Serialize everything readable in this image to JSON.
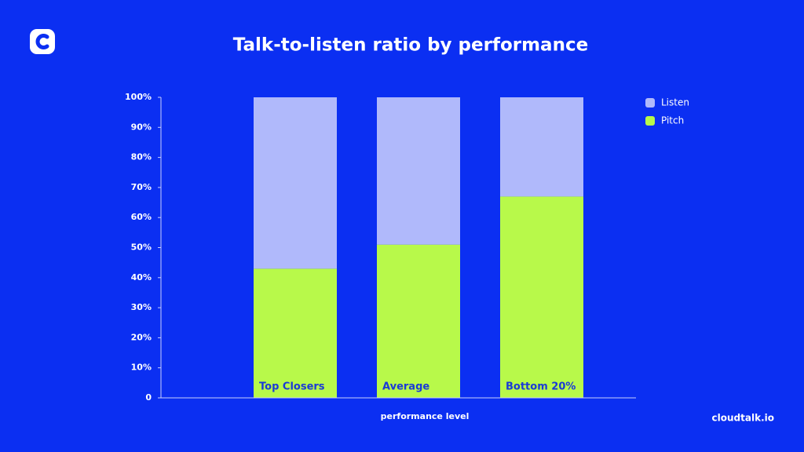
{
  "chart_data": {
    "type": "stacked_bar",
    "title": "Talk-to-listen ratio by performance",
    "x_label": "performance level",
    "brand": "cloudtalk.io",
    "categories": [
      "Top Closers",
      "Average",
      "Bottom 20%"
    ],
    "series": [
      {
        "name": "Listen",
        "color": "#b0b9fb",
        "values": [
          57,
          49,
          33
        ]
      },
      {
        "name": "Pitch",
        "color": "#b8f94a",
        "values": [
          43,
          51,
          67
        ]
      }
    ],
    "ylim": [
      0,
      100
    ],
    "yticks": [
      0,
      {
        "value": 10,
        "label": "10%"
      },
      {
        "value": 20,
        "label": "20%"
      },
      {
        "value": 30,
        "label": "30%"
      },
      {
        "value": 40,
        "label": "40%"
      },
      {
        "value": 50,
        "label": "50%"
      },
      {
        "value": 60,
        "label": "60%"
      },
      {
        "value": 70,
        "label": "70%"
      },
      {
        "value": 80,
        "label": "80%"
      },
      {
        "value": 90,
        "label": "90%"
      },
      {
        "value": 100,
        "label": "100%"
      }
    ],
    "legend": "top-right",
    "grid": false
  }
}
